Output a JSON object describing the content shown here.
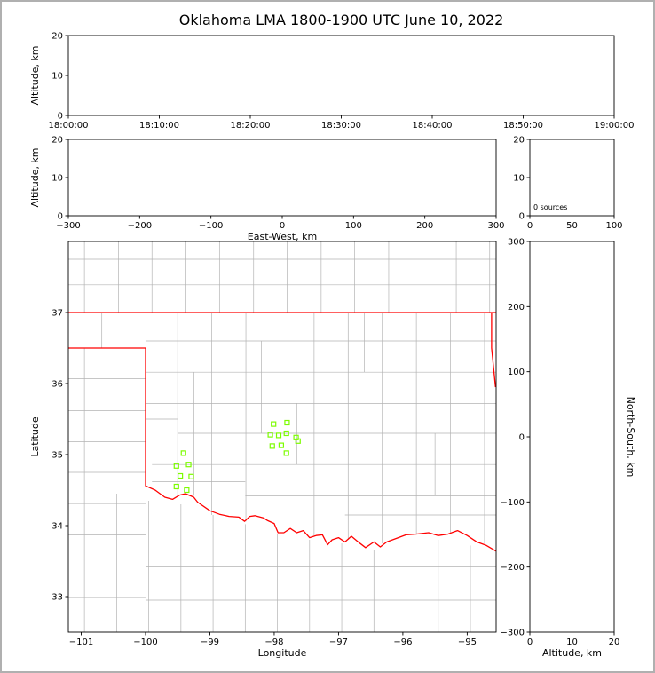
{
  "title": "Oklahoma LMA 1800-1900 UTC June 10, 2022",
  "colors": {
    "axis": "#000000",
    "tick_label": "#000000",
    "county_line": "#b3b3b3",
    "state_border": "#ff0000",
    "station_marker": "#7CFC00",
    "background": "#ffffff",
    "frame": "#b0b0b0"
  },
  "chart_data": [
    {
      "id": "time-height",
      "type": "scatter",
      "xlabel": "",
      "ylabel": "Altitude, km",
      "xticks": [
        "18:00:00",
        "18:10:00",
        "18:20:00",
        "18:30:00",
        "18:40:00",
        "18:50:00",
        "19:00:00"
      ],
      "ylim": [
        0,
        20
      ],
      "yticks": [
        0,
        10,
        20
      ],
      "points": []
    },
    {
      "id": "ew-height",
      "type": "scatter",
      "xlabel": "East-West, km",
      "ylabel": "Altitude, km",
      "xlim": [
        -300,
        300
      ],
      "xticks": [
        -300,
        -200,
        -100,
        0,
        100,
        200,
        300
      ],
      "ylim": [
        0,
        20
      ],
      "yticks": [
        0,
        10,
        20
      ],
      "points": []
    },
    {
      "id": "alt-histogram",
      "type": "histogram",
      "annotation": "0 sources",
      "xlim": [
        0,
        100
      ],
      "xticks": [
        0,
        50,
        100
      ],
      "ylim": [
        0,
        20
      ],
      "yticks": [
        0,
        10,
        20
      ],
      "values": []
    },
    {
      "id": "plan-view",
      "type": "scatter",
      "xlabel": "Longitude",
      "ylabel": "Latitude",
      "xlim": [
        -101.2,
        -94.55
      ],
      "xticks": [
        -101,
        -100,
        -99,
        -98,
        -97,
        -96,
        -95
      ],
      "ylim": [
        32.5,
        38.0
      ],
      "yticks": [
        33,
        34,
        35,
        36,
        37
      ],
      "stations": [
        [
          -99.41,
          35.02
        ],
        [
          -99.52,
          34.84
        ],
        [
          -99.33,
          34.86
        ],
        [
          -99.46,
          34.7
        ],
        [
          -99.29,
          34.69
        ],
        [
          -99.52,
          34.55
        ],
        [
          -99.36,
          34.5
        ],
        [
          -98.01,
          35.43
        ],
        [
          -97.8,
          35.45
        ],
        [
          -98.06,
          35.28
        ],
        [
          -97.93,
          35.27
        ],
        [
          -97.81,
          35.3
        ],
        [
          -97.66,
          35.24
        ],
        [
          -98.03,
          35.12
        ],
        [
          -97.89,
          35.13
        ],
        [
          -97.81,
          35.02
        ],
        [
          -97.63,
          35.19
        ]
      ],
      "state_border": [
        [
          [
            -101.2,
            37.0
          ],
          [
            -94.55,
            37.0
          ]
        ],
        [
          [
            -94.62,
            37.0
          ],
          [
            -94.62,
            36.5
          ],
          [
            -94.56,
            35.95
          ]
        ],
        [
          [
            -101.2,
            36.5
          ],
          [
            -100.0,
            36.5
          ],
          [
            -100.0,
            34.56
          ],
          [
            -99.85,
            34.5
          ],
          [
            -99.7,
            34.4
          ],
          [
            -99.58,
            34.37
          ],
          [
            -99.47,
            34.43
          ],
          [
            -99.38,
            34.45
          ],
          [
            -99.25,
            34.4
          ],
          [
            -99.19,
            34.33
          ],
          [
            -99.0,
            34.21
          ],
          [
            -98.85,
            34.16
          ],
          [
            -98.7,
            34.13
          ],
          [
            -98.55,
            34.12
          ],
          [
            -98.46,
            34.06
          ],
          [
            -98.38,
            34.13
          ],
          [
            -98.3,
            34.14
          ],
          [
            -98.17,
            34.11
          ],
          [
            -98.1,
            34.07
          ],
          [
            -98.0,
            34.03
          ],
          [
            -97.94,
            33.9
          ],
          [
            -97.85,
            33.9
          ],
          [
            -97.75,
            33.96
          ],
          [
            -97.65,
            33.9
          ],
          [
            -97.55,
            33.93
          ],
          [
            -97.45,
            33.83
          ],
          [
            -97.35,
            33.86
          ],
          [
            -97.25,
            33.87
          ],
          [
            -97.17,
            33.73
          ],
          [
            -97.1,
            33.8
          ],
          [
            -97.0,
            33.83
          ],
          [
            -96.9,
            33.77
          ],
          [
            -96.8,
            33.85
          ],
          [
            -96.68,
            33.76
          ],
          [
            -96.58,
            33.69
          ],
          [
            -96.45,
            33.77
          ],
          [
            -96.35,
            33.7
          ],
          [
            -96.25,
            33.77
          ],
          [
            -96.1,
            33.82
          ],
          [
            -95.95,
            33.87
          ],
          [
            -95.8,
            33.88
          ],
          [
            -95.6,
            33.9
          ],
          [
            -95.45,
            33.86
          ],
          [
            -95.3,
            33.88
          ],
          [
            -95.15,
            33.93
          ],
          [
            -95.0,
            33.86
          ],
          [
            -94.85,
            33.77
          ],
          [
            -94.7,
            33.72
          ],
          [
            -94.55,
            33.64
          ]
        ]
      ],
      "counties": {
        "h": [
          [
            37.39,
            -101.2,
            -94.55
          ],
          [
            37.75,
            -101.2,
            -94.55
          ],
          [
            36.07,
            -101.2,
            -100.0
          ],
          [
            35.62,
            -101.2,
            -100.0
          ],
          [
            35.18,
            -101.2,
            -100.0
          ],
          [
            34.75,
            -101.2,
            -100.0
          ],
          [
            34.31,
            -101.2,
            -100.0
          ],
          [
            33.87,
            -101.2,
            -100.0
          ],
          [
            33.43,
            -101.2,
            -100.0
          ],
          [
            32.99,
            -101.2,
            -100.0
          ],
          [
            36.6,
            -100.0,
            -94.55
          ],
          [
            36.16,
            -100.0,
            -94.55
          ],
          [
            35.72,
            -100.0,
            -94.55
          ],
          [
            35.5,
            -100.0,
            -99.5
          ],
          [
            35.3,
            -99.5,
            -94.55
          ],
          [
            34.86,
            -99.9,
            -94.55
          ],
          [
            34.62,
            -99.9,
            -98.45
          ],
          [
            34.42,
            -98.45,
            -94.55
          ],
          [
            34.15,
            -96.9,
            -94.55
          ],
          [
            33.42,
            -100.0,
            -94.55
          ],
          [
            32.95,
            -100.0,
            -94.55
          ]
        ],
        "v": [
          [
            -100.95,
            37.0,
            38.0
          ],
          [
            -100.42,
            37.0,
            38.0
          ],
          [
            -99.9,
            37.0,
            38.0
          ],
          [
            -99.37,
            37.0,
            38.0
          ],
          [
            -98.85,
            37.0,
            38.0
          ],
          [
            -98.32,
            37.0,
            38.0
          ],
          [
            -97.8,
            37.0,
            38.0
          ],
          [
            -97.27,
            37.0,
            38.0
          ],
          [
            -96.75,
            37.0,
            38.0
          ],
          [
            -96.22,
            37.0,
            38.0
          ],
          [
            -95.7,
            37.0,
            38.0
          ],
          [
            -95.17,
            37.0,
            38.0
          ],
          [
            -94.65,
            37.0,
            38.0
          ],
          [
            -100.68,
            36.5,
            37.0
          ],
          [
            -100.95,
            32.5,
            36.5
          ],
          [
            -100.6,
            32.5,
            36.5
          ],
          [
            -99.5,
            34.42,
            37.0
          ],
          [
            -99.25,
            34.42,
            36.16
          ],
          [
            -98.97,
            34.15,
            37.0
          ],
          [
            -98.44,
            34.06,
            37.0
          ],
          [
            -98.2,
            35.3,
            36.6
          ],
          [
            -97.91,
            33.95,
            37.0
          ],
          [
            -97.65,
            34.86,
            35.72
          ],
          [
            -97.38,
            33.86,
            37.0
          ],
          [
            -96.85,
            33.8,
            37.0
          ],
          [
            -96.6,
            36.16,
            37.0
          ],
          [
            -96.32,
            33.75,
            37.0
          ],
          [
            -95.79,
            33.88,
            37.0
          ],
          [
            -95.5,
            34.42,
            35.3
          ],
          [
            -95.26,
            33.9,
            37.0
          ],
          [
            -94.73,
            33.75,
            37.0
          ],
          [
            -100.45,
            32.5,
            34.45
          ],
          [
            -99.95,
            32.5,
            34.35
          ],
          [
            -99.45,
            32.5,
            34.3
          ],
          [
            -98.95,
            32.5,
            34.15
          ],
          [
            -98.45,
            32.5,
            34.02
          ],
          [
            -97.95,
            32.5,
            33.88
          ],
          [
            -97.45,
            32.5,
            33.8
          ],
          [
            -96.95,
            32.5,
            33.75
          ],
          [
            -96.45,
            32.5,
            33.65
          ],
          [
            -95.95,
            32.5,
            33.8
          ],
          [
            -95.45,
            32.5,
            33.8
          ],
          [
            -94.95,
            32.5,
            33.72
          ]
        ]
      }
    },
    {
      "id": "ns-height",
      "type": "scatter",
      "xlabel": "Altitude, km",
      "ylabel": "North-South, km",
      "xlim": [
        0,
        20
      ],
      "xticks": [
        0,
        10,
        20
      ],
      "ylim": [
        -300,
        300
      ],
      "yticks": [
        -300,
        -200,
        -100,
        0,
        100,
        200,
        300
      ],
      "points": []
    }
  ]
}
